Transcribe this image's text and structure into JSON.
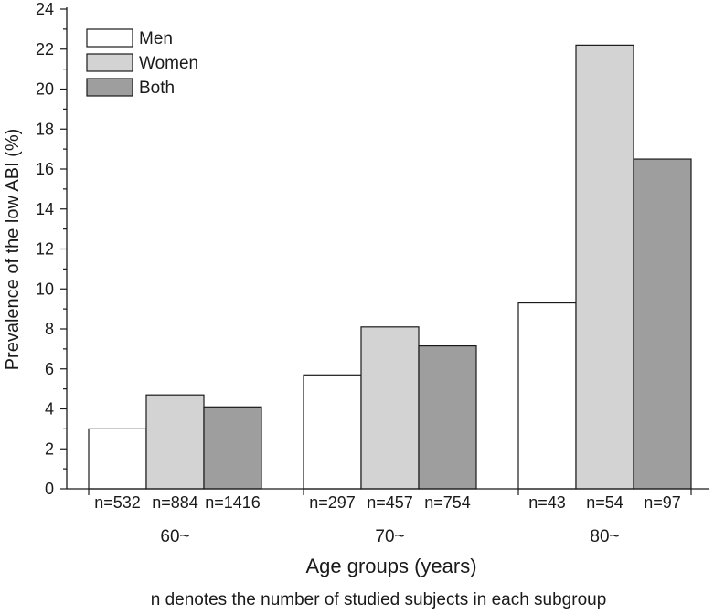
{
  "chart_data": {
    "type": "bar",
    "title": "",
    "xlabel": "Age groups (years)",
    "ylabel": "Prevalence of the low ABI (%)",
    "footnote": "n denotes the number of studied subjects in each subgroup",
    "ylim": [
      0,
      24
    ],
    "yticks": [
      "0",
      "2",
      "4",
      "6",
      "8",
      "10",
      "12",
      "14",
      "16",
      "18",
      "20",
      "22",
      "24"
    ],
    "categories": [
      "60~",
      "70~",
      "80~"
    ],
    "legend_position": "top-left",
    "series": [
      {
        "name": "Men",
        "color": "#ffffff",
        "values": [
          3.0,
          5.7,
          9.3
        ],
        "n_labels": [
          "n=532",
          "n=297",
          "n=43"
        ]
      },
      {
        "name": "Women",
        "color": "#d3d3d3",
        "values": [
          4.7,
          8.1,
          22.2
        ],
        "n_labels": [
          "n=884",
          "n=457",
          "n=54"
        ]
      },
      {
        "name": "Both",
        "color": "#9e9e9e",
        "values": [
          4.1,
          7.15,
          16.5
        ],
        "n_labels": [
          "n=1416",
          "n=754",
          "n=97"
        ]
      }
    ]
  }
}
